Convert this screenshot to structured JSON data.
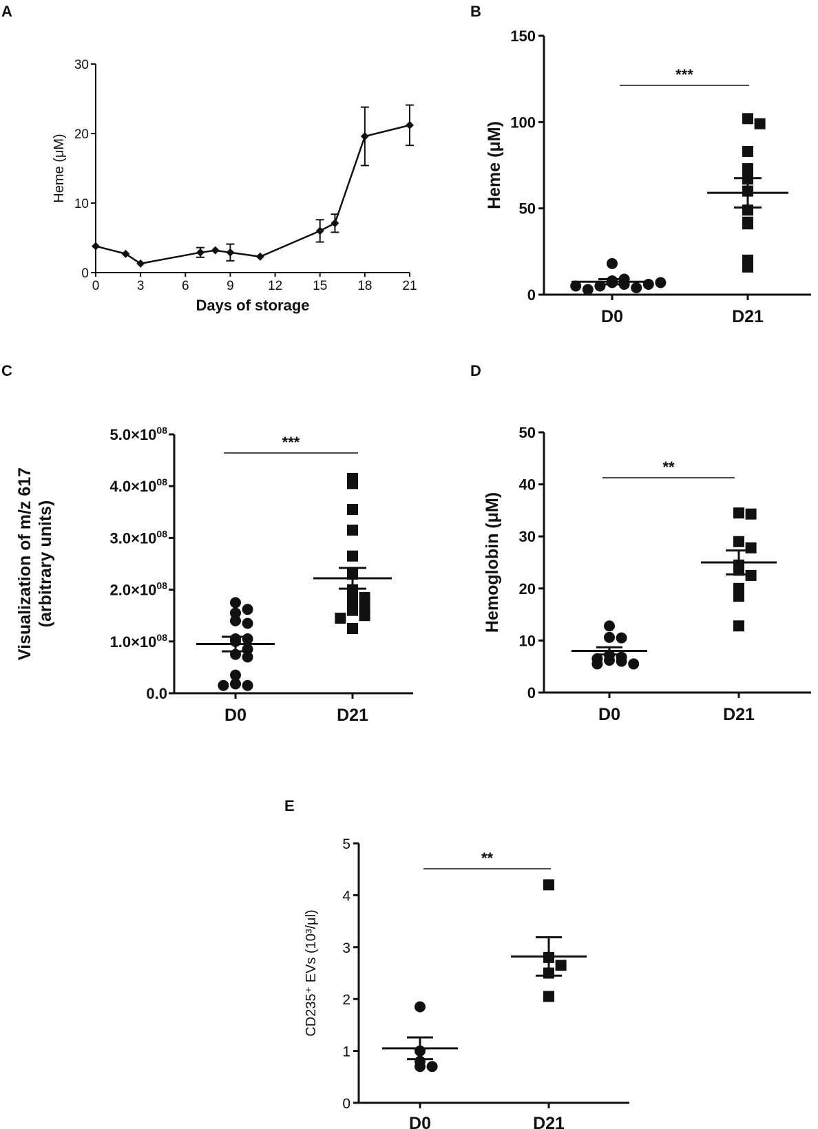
{
  "chart_data": [
    {
      "panel": "A",
      "type": "line",
      "xlabel": "Days of storage",
      "ylabel": "Heme (μM)",
      "xlim": [
        0,
        21
      ],
      "ylim": [
        0,
        30
      ],
      "xticks": [
        "0",
        "3",
        "6",
        "9",
        "12",
        "15",
        "18",
        "21"
      ],
      "yticks": [
        "0",
        "10",
        "20",
        "30"
      ],
      "series": [
        {
          "name": "Heme",
          "points": [
            {
              "x": 0,
              "y": 3.8,
              "err": 0
            },
            {
              "x": 2,
              "y": 2.7,
              "err": 0
            },
            {
              "x": 3,
              "y": 1.3,
              "err": 0
            },
            {
              "x": 7,
              "y": 2.9,
              "err": 0.7
            },
            {
              "x": 8,
              "y": 3.2,
              "err": 0
            },
            {
              "x": 9,
              "y": 2.9,
              "err": 1.2
            },
            {
              "x": 11,
              "y": 2.3,
              "err": 0
            },
            {
              "x": 15,
              "y": 6.0,
              "err": 1.6
            },
            {
              "x": 16,
              "y": 7.1,
              "err": 1.3
            },
            {
              "x": 18,
              "y": 19.6,
              "err": 4.2
            },
            {
              "x": 21,
              "y": 21.2,
              "err": 2.9
            }
          ]
        }
      ]
    },
    {
      "panel": "B",
      "type": "scatter",
      "ylabel": "Heme (μM)",
      "categories": [
        "D0",
        "D21"
      ],
      "ylim": [
        0,
        150
      ],
      "yticks": [
        "0",
        "50",
        "100",
        "150"
      ],
      "significance": "***",
      "groups": [
        {
          "name": "D0",
          "marker": "circle",
          "mean": 7.5,
          "sem": 1.5,
          "values": [
            18,
            8,
            7,
            6,
            5,
            4,
            3,
            9,
            6,
            5,
            7
          ]
        },
        {
          "name": "D21",
          "marker": "square",
          "mean": 59,
          "sem": 8.5,
          "values": [
            102,
            99,
            83,
            73,
            67,
            60,
            49,
            42,
            41,
            20,
            16
          ]
        }
      ]
    },
    {
      "panel": "C",
      "type": "scatter",
      "ylabel": "Visualization of m/z 617",
      "ylabel2": "(arbitrary units)",
      "categories": [
        "D0",
        "D21"
      ],
      "ylim": [
        0,
        500000000
      ],
      "yticks": [
        {
          "base": "0.0",
          "exp": ""
        },
        {
          "base": "1.0×10",
          "exp": "08"
        },
        {
          "base": "2.0×10",
          "exp": "08"
        },
        {
          "base": "3.0×10",
          "exp": "08"
        },
        {
          "base": "4.0×10",
          "exp": "08"
        },
        {
          "base": "5.0×10",
          "exp": "08"
        }
      ],
      "significance": "***",
      "groups": [
        {
          "name": "D0",
          "marker": "circle",
          "mean": 95000000,
          "sem": 14000000,
          "values": [
            175000000,
            162000000,
            155000000,
            140000000,
            135000000,
            105000000,
            105000000,
            100000000,
            85000000,
            75000000,
            70000000,
            35000000,
            18000000,
            15000000,
            15000000
          ]
        },
        {
          "name": "D21",
          "marker": "square",
          "mean": 222000000,
          "sem": 20000000,
          "values": [
            415000000,
            405000000,
            355000000,
            315000000,
            265000000,
            230000000,
            200000000,
            190000000,
            185000000,
            170000000,
            165000000,
            160000000,
            150000000,
            145000000,
            125000000
          ]
        }
      ]
    },
    {
      "panel": "D",
      "type": "scatter",
      "ylabel": "Hemoglobin (μM)",
      "categories": [
        "D0",
        "D21"
      ],
      "ylim": [
        0,
        50
      ],
      "yticks": [
        "0",
        "10",
        "20",
        "30",
        "40",
        "50"
      ],
      "significance": "**",
      "groups": [
        {
          "name": "D0",
          "marker": "circle",
          "mean": 8.0,
          "sem": 0.7,
          "values": [
            12.8,
            10.6,
            10.5,
            7.2,
            6.8,
            6.5,
            6.2,
            6.0,
            5.5,
            5.5
          ]
        },
        {
          "name": "D21",
          "marker": "square",
          "mean": 25,
          "sem": 2.3,
          "values": [
            34.5,
            34.3,
            29,
            27.8,
            24.5,
            23.5,
            22.5,
            20,
            18.5,
            12.8
          ]
        }
      ]
    },
    {
      "panel": "E",
      "type": "scatter",
      "ylabel": "CD235⁺ EVs (10³/μl)",
      "categories": [
        "D0",
        "D21"
      ],
      "ylim": [
        0,
        5
      ],
      "yticks": [
        "0",
        "1",
        "2",
        "3",
        "4",
        "5"
      ],
      "significance": "**",
      "groups": [
        {
          "name": "D0",
          "marker": "circle",
          "mean": 1.05,
          "sem": 0.21,
          "values": [
            1.85,
            1.0,
            0.8,
            0.7,
            0.7
          ]
        },
        {
          "name": "D21",
          "marker": "square",
          "mean": 2.82,
          "sem": 0.37,
          "values": [
            4.2,
            2.8,
            2.65,
            2.5,
            2.05
          ]
        }
      ]
    }
  ]
}
